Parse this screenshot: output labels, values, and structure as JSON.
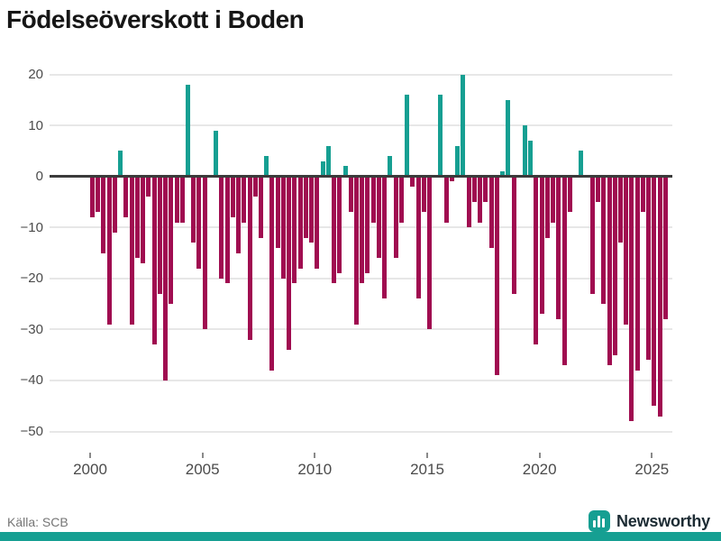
{
  "header": {
    "title": "Födelseöverskott i Boden"
  },
  "footer": {
    "source": "Källa: SCB",
    "brand": "Newsworthy",
    "brand_icon": "newsworthy-bars-icon"
  },
  "chart_data": {
    "type": "bar",
    "title": "Födelseöverskott i Boden",
    "subtitle": "",
    "xlabel": "",
    "ylabel": "",
    "unit_period": "quarterly",
    "x_range": [
      "2000Q1",
      "2025Q3"
    ],
    "ylim": [
      -52,
      22
    ],
    "grid": true,
    "legend": "none",
    "y_tick_values": [
      20,
      10,
      0,
      -10,
      -20,
      -30,
      -40,
      -50
    ],
    "y_tick_labels": [
      "20",
      "10",
      "0",
      "−10",
      "−20",
      "−30",
      "−40",
      "−50"
    ],
    "x_tick_labels": [
      "2000",
      "2005",
      "2010",
      "2015",
      "2020",
      "2025"
    ],
    "colors": {
      "positive": "#169f92",
      "negative": "#a00c50",
      "zero_line": "#3b3b3b",
      "gridline": "#e7e7e7"
    },
    "series": [
      {
        "year": 2000,
        "q": [
          -8,
          -7,
          -15,
          -29
        ]
      },
      {
        "year": 2001,
        "q": [
          -11,
          5,
          -8,
          -29
        ]
      },
      {
        "year": 2002,
        "q": [
          -16,
          -17,
          -4,
          -33
        ]
      },
      {
        "year": 2003,
        "q": [
          -23,
          -40,
          -25,
          -9
        ]
      },
      {
        "year": 2004,
        "q": [
          -9,
          18,
          -13,
          -18
        ]
      },
      {
        "year": 2005,
        "q": [
          -30,
          0,
          9,
          -20
        ]
      },
      {
        "year": 2006,
        "q": [
          -21,
          -8,
          -15,
          -9
        ]
      },
      {
        "year": 2007,
        "q": [
          -32,
          -4,
          -12,
          4
        ]
      },
      {
        "year": 2008,
        "q": [
          -38,
          -14,
          -20,
          -34
        ]
      },
      {
        "year": 2009,
        "q": [
          -21,
          -18,
          -12,
          -13
        ]
      },
      {
        "year": 2010,
        "q": [
          -18,
          3,
          6,
          -21
        ]
      },
      {
        "year": 2011,
        "q": [
          -19,
          2,
          -7,
          -29
        ]
      },
      {
        "year": 2012,
        "q": [
          -21,
          -19,
          -9,
          -16
        ]
      },
      {
        "year": 2013,
        "q": [
          -24,
          4,
          -16,
          -9
        ]
      },
      {
        "year": 2014,
        "q": [
          16,
          -2,
          -24,
          -7
        ]
      },
      {
        "year": 2015,
        "q": [
          -30,
          0,
          16,
          -9
        ]
      },
      {
        "year": 2016,
        "q": [
          -1,
          6,
          20,
          -10
        ]
      },
      {
        "year": 2017,
        "q": [
          -5,
          -9,
          -5,
          -14
        ]
      },
      {
        "year": 2018,
        "q": [
          -39,
          1,
          15,
          -23
        ]
      },
      {
        "year": 2019,
        "q": [
          0,
          10,
          7,
          -33
        ]
      },
      {
        "year": 2020,
        "q": [
          -27,
          -12,
          -9,
          -28
        ]
      },
      {
        "year": 2021,
        "q": [
          -37,
          -7,
          0,
          5
        ]
      },
      {
        "year": 2022,
        "q": [
          0,
          -23,
          -5,
          -25
        ]
      },
      {
        "year": 2023,
        "q": [
          -37,
          -35,
          -13,
          -29
        ]
      },
      {
        "year": 2024,
        "q": [
          -48,
          -38,
          -7,
          -36
        ]
      },
      {
        "year": 2025,
        "q": [
          -45,
          -47,
          -28
        ]
      }
    ]
  }
}
